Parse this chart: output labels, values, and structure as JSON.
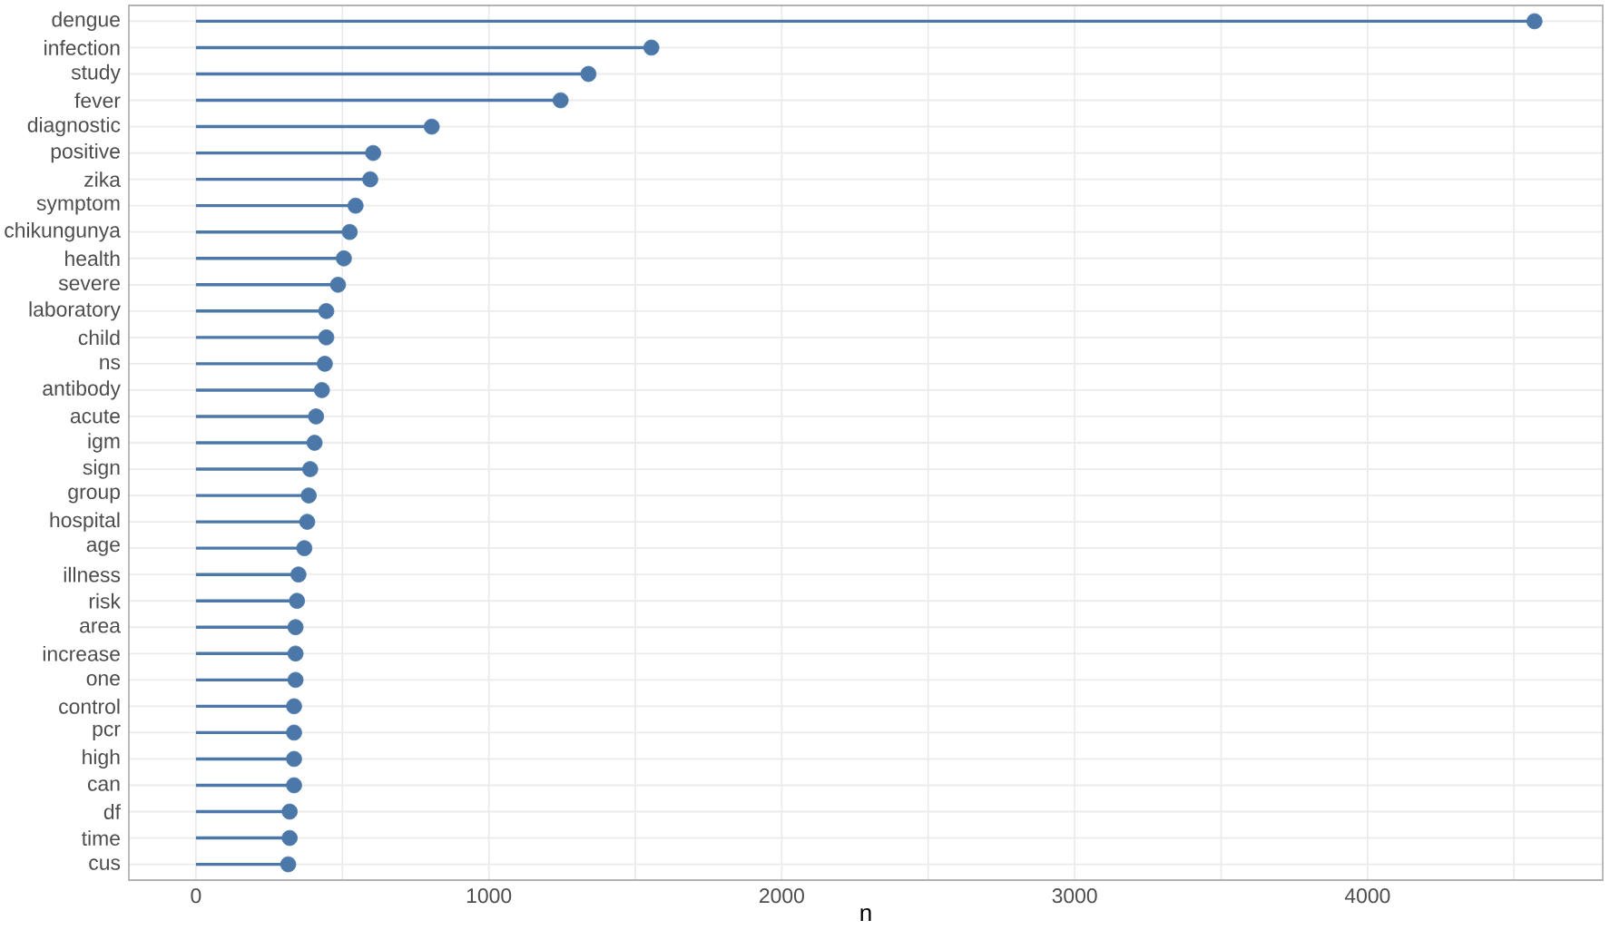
{
  "chart_data": {
    "type": "lollipop",
    "orientation": "horizontal",
    "xlabel": "n",
    "categories": [
      "dengue",
      "infection",
      "study",
      "fever",
      "diagnostic",
      "positive",
      "zika",
      "symptom",
      "chikungunya",
      "health",
      "severe",
      "laboratory",
      "child",
      "ns",
      "antibody",
      "acute",
      "igm",
      "sign",
      "group",
      "hospital",
      "age",
      "illness",
      "risk",
      "area",
      "increase",
      "one",
      "control",
      "pcr",
      "high",
      "can",
      "df",
      "time",
      "cus"
    ],
    "values": [
      4570,
      1555,
      1340,
      1245,
      805,
      605,
      595,
      545,
      525,
      505,
      485,
      445,
      445,
      440,
      430,
      410,
      405,
      390,
      385,
      380,
      370,
      350,
      345,
      340,
      340,
      340,
      335,
      335,
      335,
      335,
      320,
      320,
      315
    ],
    "color": "#4b78a8",
    "marker": "circle",
    "xlim": [
      -229,
      4803
    ],
    "xticks": [
      0,
      {
        "value": 500,
        "label": null
      },
      1000,
      {
        "value": 1500,
        "label": null
      },
      2000,
      {
        "value": 2500,
        "label": null
      },
      3000,
      {
        "value": 3500,
        "label": null
      },
      4000,
      {
        "value": 4500,
        "label": null
      }
    ],
    "grid": true
  }
}
